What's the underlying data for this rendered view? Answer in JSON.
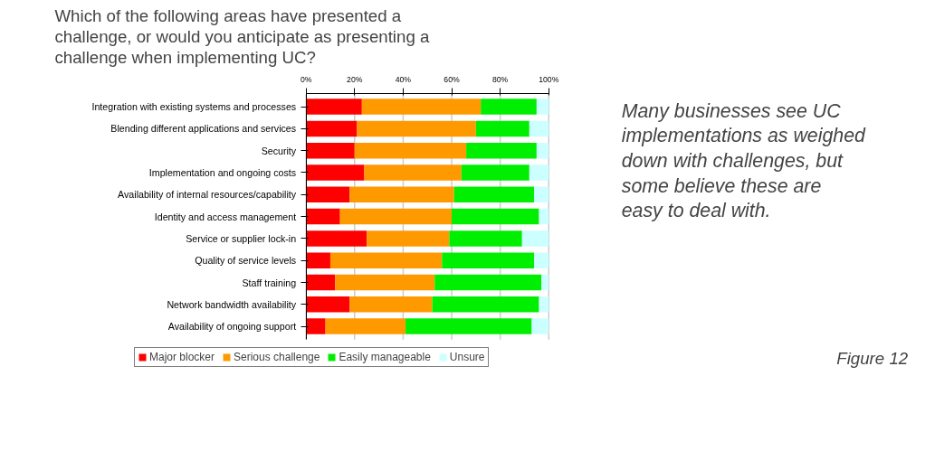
{
  "chart_data": {
    "type": "bar",
    "orientation": "horizontal",
    "stacked": true,
    "title": "Which of the following areas have presented a challenge, or would you anticipate as presenting a challenge when implementing UC?",
    "categories": [
      "Integration with existing systems and processes",
      "Blending different applications and services",
      "Security",
      "Implementation and ongoing costs",
      "Availability of internal resources/capability",
      "Identity and access management",
      "Service or supplier lock-in",
      "Quality of service levels",
      "Staff training",
      "Network bandwidth availability",
      "Availability of ongoing support"
    ],
    "series": [
      {
        "name": "Major blocker",
        "color": "#ff0000",
        "values": [
          23,
          21,
          20,
          24,
          18,
          14,
          25,
          10,
          12,
          18,
          8
        ]
      },
      {
        "name": "Serious challenge",
        "color": "#ff9900",
        "values": [
          49,
          49,
          46,
          40,
          43,
          46,
          34,
          46,
          41,
          34,
          33
        ]
      },
      {
        "name": "Easily manageable",
        "color": "#00ee00",
        "values": [
          23,
          22,
          29,
          28,
          33,
          36,
          30,
          38,
          44,
          44,
          52
        ]
      },
      {
        "name": "Unsure",
        "color": "#ccffff",
        "values": [
          5,
          8,
          5,
          8,
          6,
          4,
          11,
          6,
          3,
          4,
          7
        ]
      }
    ],
    "xlim": [
      0,
      100
    ],
    "xticks": [
      {
        "value": 0,
        "label": "0%"
      },
      {
        "value": 20,
        "label": "20%"
      },
      {
        "value": 40,
        "label": "40%"
      },
      {
        "value": 60,
        "label": "60%"
      },
      {
        "value": 80,
        "label": "80%"
      },
      {
        "value": 100,
        "label": "100%"
      }
    ],
    "grid": "x",
    "legend": "bottom",
    "annotations": [
      "Many businesses see UC implementations as weighed down with challenges, but some believe these are easy to deal with.",
      "Figure 12"
    ]
  }
}
